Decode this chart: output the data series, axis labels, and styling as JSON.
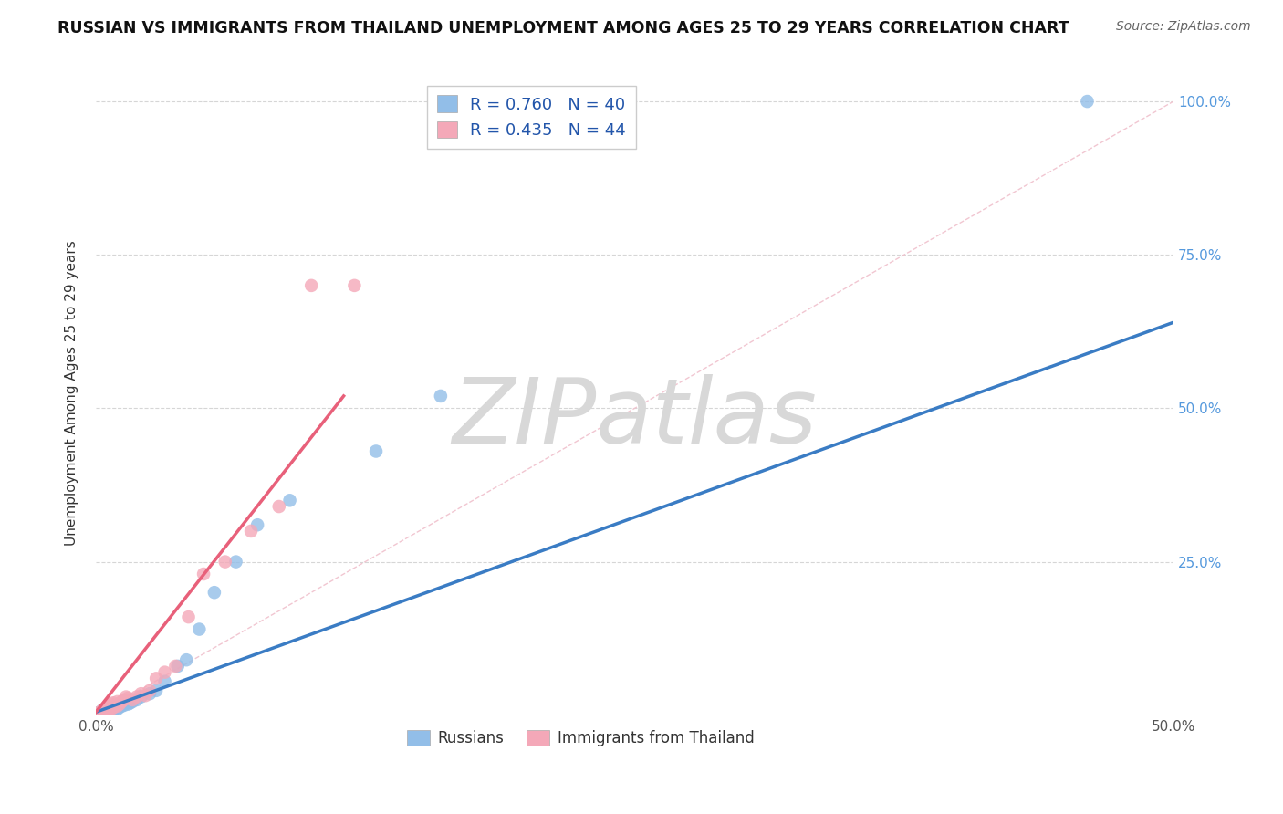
{
  "title": "RUSSIAN VS IMMIGRANTS FROM THAILAND UNEMPLOYMENT AMONG AGES 25 TO 29 YEARS CORRELATION CHART",
  "source": "Source: ZipAtlas.com",
  "ylabel": "Unemployment Among Ages 25 to 29 years",
  "xlim": [
    0.0,
    0.5
  ],
  "ylim": [
    0.0,
    1.05
  ],
  "xticks": [
    0.0,
    0.1,
    0.2,
    0.3,
    0.4,
    0.5
  ],
  "xticklabels": [
    "0.0%",
    "",
    "",
    "",
    "",
    "50.0%"
  ],
  "yticks": [
    0.0,
    0.25,
    0.5,
    0.75,
    1.0
  ],
  "ylabels_left": [
    "",
    "",
    "",
    "",
    ""
  ],
  "ylabels_right": [
    "",
    "25.0%",
    "50.0%",
    "75.0%",
    "100.0%"
  ],
  "legend_line1": "R = 0.760   N = 40",
  "legend_line2": "R = 0.435   N = 44",
  "legend_label_russian": "Russians",
  "legend_label_thai": "Immigrants from Thailand",
  "russian_color": "#92BEE8",
  "thai_color": "#F4A8B8",
  "russian_line_color": "#3A7CC4",
  "thai_line_color": "#E8607A",
  "diagonal_color": "#F0C0CC",
  "watermark": "ZIPatlas",
  "watermark_color": "#D8D8D8",
  "russian_x": [
    0.001,
    0.001,
    0.002,
    0.002,
    0.003,
    0.003,
    0.003,
    0.004,
    0.004,
    0.005,
    0.005,
    0.006,
    0.006,
    0.007,
    0.008,
    0.008,
    0.009,
    0.01,
    0.01,
    0.011,
    0.012,
    0.013,
    0.015,
    0.016,
    0.017,
    0.019,
    0.021,
    0.025,
    0.028,
    0.032,
    0.038,
    0.042,
    0.048,
    0.055,
    0.065,
    0.075,
    0.09,
    0.13,
    0.16,
    0.46
  ],
  "russian_y": [
    0.001,
    0.003,
    0.002,
    0.005,
    0.003,
    0.006,
    0.008,
    0.005,
    0.007,
    0.004,
    0.008,
    0.006,
    0.01,
    0.009,
    0.008,
    0.012,
    0.011,
    0.01,
    0.015,
    0.013,
    0.015,
    0.016,
    0.018,
    0.02,
    0.022,
    0.025,
    0.03,
    0.035,
    0.04,
    0.055,
    0.08,
    0.09,
    0.14,
    0.2,
    0.25,
    0.31,
    0.35,
    0.43,
    0.52,
    1.0
  ],
  "thai_x": [
    0.001,
    0.001,
    0.001,
    0.002,
    0.002,
    0.002,
    0.003,
    0.003,
    0.003,
    0.004,
    0.004,
    0.004,
    0.005,
    0.005,
    0.005,
    0.006,
    0.006,
    0.007,
    0.007,
    0.008,
    0.008,
    0.009,
    0.01,
    0.01,
    0.011,
    0.012,
    0.013,
    0.014,
    0.015,
    0.017,
    0.019,
    0.021,
    0.023,
    0.025,
    0.028,
    0.032,
    0.037,
    0.043,
    0.05,
    0.06,
    0.072,
    0.085,
    0.1,
    0.12
  ],
  "thai_y": [
    0.001,
    0.002,
    0.003,
    0.002,
    0.003,
    0.005,
    0.004,
    0.006,
    0.008,
    0.005,
    0.007,
    0.01,
    0.006,
    0.008,
    0.012,
    0.009,
    0.015,
    0.01,
    0.018,
    0.012,
    0.02,
    0.016,
    0.015,
    0.022,
    0.018,
    0.022,
    0.025,
    0.03,
    0.028,
    0.025,
    0.03,
    0.035,
    0.032,
    0.04,
    0.06,
    0.07,
    0.08,
    0.16,
    0.23,
    0.25,
    0.3,
    0.34,
    0.7,
    0.7
  ],
  "russian_line_x": [
    0.0,
    0.5
  ],
  "russian_line_y": [
    0.005,
    0.64
  ],
  "thai_line_x": [
    0.0,
    0.115
  ],
  "thai_line_y": [
    0.005,
    0.52
  ]
}
